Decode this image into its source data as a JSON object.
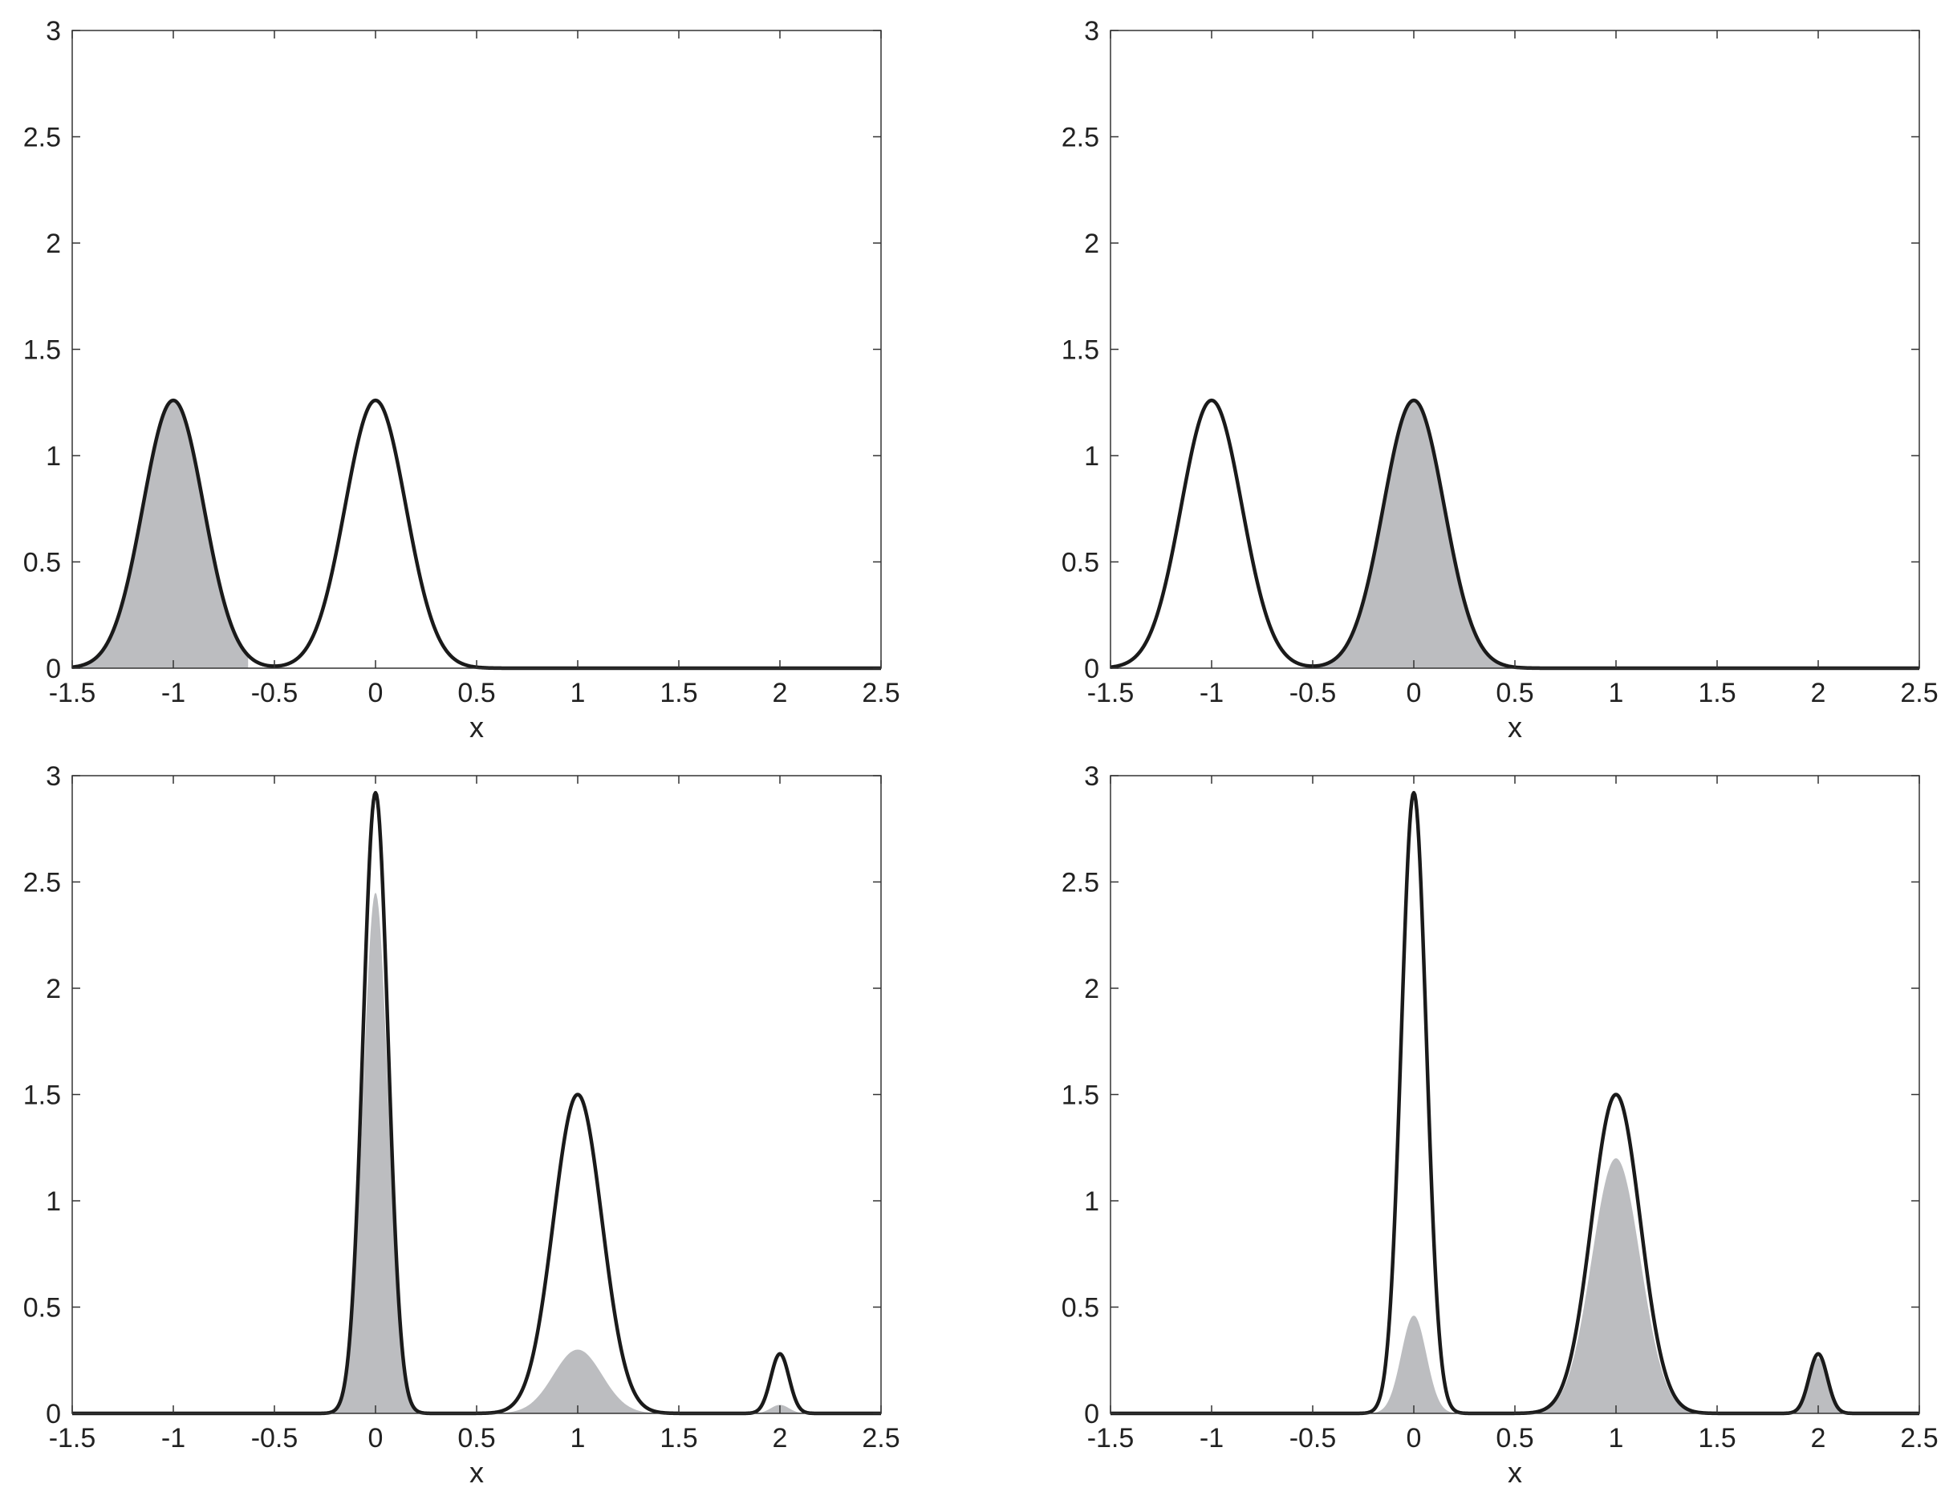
{
  "colors": {
    "curve": "#1a1a1a",
    "fill": "#bcbdc0",
    "axes": "#333333",
    "background": "#ffffff"
  },
  "chart_data": [
    {
      "panel": "top-left",
      "type": "area",
      "xlabel": "x",
      "ylabel": "",
      "xlim": [
        -1.5,
        2.5
      ],
      "ylim": [
        0,
        3
      ],
      "xticks": [
        "-1.5",
        "-1",
        "-0.5",
        "0",
        "0.5",
        "1",
        "1.5",
        "2",
        "2.5"
      ],
      "yticks": [
        "0",
        "0.5",
        "1",
        "1.5",
        "2",
        "2.5",
        "3"
      ],
      "grid": false,
      "series": [
        {
          "kind": "line",
          "peaks": [
            {
              "center": -1,
              "height": 1.26,
              "width": 0.15
            },
            {
              "center": 0,
              "height": 1.26,
              "width": 0.15
            }
          ]
        },
        {
          "kind": "filled-region",
          "peaks": [
            {
              "center": -1,
              "height": 1.26,
              "width": 0.15
            }
          ],
          "x_range": [
            -1.5,
            -0.63
          ]
        }
      ]
    },
    {
      "panel": "top-right",
      "type": "area",
      "xlabel": "x",
      "ylabel": "",
      "xlim": [
        -1.5,
        2.5
      ],
      "ylim": [
        0,
        3
      ],
      "xticks": [
        "-1.5",
        "-1",
        "-0.5",
        "0",
        "0.5",
        "1",
        "1.5",
        "2",
        "2.5"
      ],
      "yticks": [
        "0",
        "0.5",
        "1",
        "1.5",
        "2",
        "2.5",
        "3"
      ],
      "grid": false,
      "series": [
        {
          "kind": "line",
          "peaks": [
            {
              "center": -1,
              "height": 1.26,
              "width": 0.15
            },
            {
              "center": 0,
              "height": 1.26,
              "width": 0.15
            }
          ]
        },
        {
          "kind": "filled-region",
          "peaks": [
            {
              "center": 0,
              "height": 1.26,
              "width": 0.15
            }
          ],
          "x_range": [
            -0.5,
            0.55
          ]
        }
      ]
    },
    {
      "panel": "bottom-left",
      "type": "area",
      "xlabel": "x",
      "ylabel": "",
      "xlim": [
        -1.5,
        2.5
      ],
      "ylim": [
        0,
        3
      ],
      "xticks": [
        "-1.5",
        "-1",
        "-0.5",
        "0",
        "0.5",
        "1",
        "1.5",
        "2",
        "2.5"
      ],
      "yticks": [
        "0",
        "0.5",
        "1",
        "1.5",
        "2",
        "2.5",
        "3"
      ],
      "grid": false,
      "series": [
        {
          "kind": "line",
          "peaks": [
            {
              "center": 0,
              "height": 2.92,
              "width": 0.062
            },
            {
              "center": 1,
              "height": 1.5,
              "width": 0.12
            },
            {
              "center": 2,
              "height": 0.28,
              "width": 0.045
            }
          ]
        },
        {
          "kind": "filled-region",
          "peaks": [
            {
              "center": 0,
              "height": 2.45,
              "width": 0.062
            },
            {
              "center": 1,
              "height": 0.3,
              "width": 0.12
            },
            {
              "center": 2,
              "height": 0.04,
              "width": 0.045
            }
          ]
        }
      ]
    },
    {
      "panel": "bottom-right",
      "type": "area",
      "xlabel": "x",
      "ylabel": "",
      "xlim": [
        -1.5,
        2.5
      ],
      "ylim": [
        0,
        3
      ],
      "xticks": [
        "-1.5",
        "-1",
        "-0.5",
        "0",
        "0.5",
        "1",
        "1.5",
        "2",
        "2.5"
      ],
      "yticks": [
        "0",
        "0.5",
        "1",
        "1.5",
        "2",
        "2.5",
        "3"
      ],
      "grid": false,
      "series": [
        {
          "kind": "line",
          "peaks": [
            {
              "center": 0,
              "height": 2.92,
              "width": 0.062
            },
            {
              "center": 1,
              "height": 1.5,
              "width": 0.12
            },
            {
              "center": 2,
              "height": 0.28,
              "width": 0.045
            }
          ]
        },
        {
          "kind": "filled-region",
          "peaks": [
            {
              "center": 0,
              "height": 0.46,
              "width": 0.062
            },
            {
              "center": 1,
              "height": 1.2,
              "width": 0.12
            },
            {
              "center": 2,
              "height": 0.26,
              "width": 0.045
            }
          ]
        }
      ]
    }
  ]
}
